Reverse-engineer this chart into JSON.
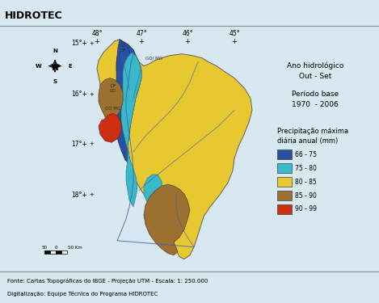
{
  "title": "HIDROTEC",
  "bg_color": "#d8e8f0",
  "header_bg": "#c0d0dc",
  "footer_text_1": "Fonte: Cartas Topográficas do IBGE - Projeção UTM - Escala: 1: 250.000",
  "footer_text_2": "Digitalização: Equipe Técnica do Programa HIDROTEC",
  "right_text_1": "Ano hidrológico",
  "right_text_2": "Out - Set",
  "right_text_3": "Período base",
  "right_text_4": "1970  - 2006",
  "legend_title_1": "Precipitação máxima",
  "legend_title_2": "diária anual (mm)",
  "legend_items": [
    {
      "label": "66 - 75",
      "color": "#2b4fa0"
    },
    {
      "label": "75 - 80",
      "color": "#38b8c8"
    },
    {
      "label": "80 - 85",
      "color": "#e8c830"
    },
    {
      "label": "85 - 90",
      "color": "#9b7030"
    },
    {
      "label": "90 - 99",
      "color": "#cc3010"
    }
  ],
  "lat_labels": [
    "15°+",
    "16°+",
    "17°+",
    "18°+"
  ],
  "lon_labels": [
    "48°",
    "47°",
    "46°",
    "45°"
  ],
  "yellow_color": "#e8c830",
  "blue_color": "#2b4fa0",
  "cyan_color": "#38b8c8",
  "brown_color": "#9b7030",
  "red_color": "#cc3010",
  "river_color": "#6080c0",
  "border_color": "#606060"
}
